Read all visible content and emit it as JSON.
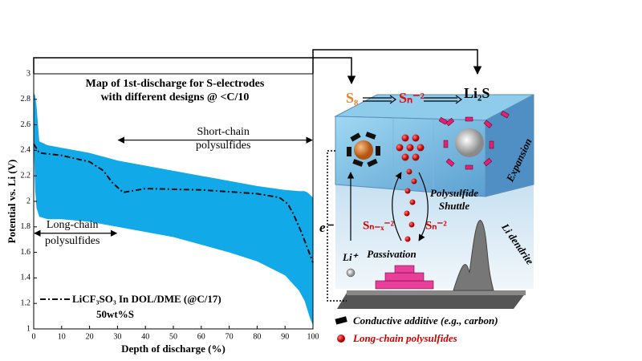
{
  "chart_data": {
    "type": "band-line",
    "title": [
      "Map of 1st-discharge for S-electrodes",
      "with different designs @ <C/10"
    ],
    "x_label": "Depth of discharge (%)",
    "y_label": "Potential vs. Li (V)",
    "xlim": [
      0,
      100
    ],
    "ylim": [
      1,
      3
    ],
    "xticks": [
      0,
      10,
      20,
      30,
      40,
      50,
      60,
      70,
      80,
      90,
      100
    ],
    "yticks": [
      1,
      1.2,
      1.4,
      1.6,
      1.8,
      2,
      2.2,
      2.4,
      2.6,
      2.8,
      3
    ],
    "band": {
      "color": "#12a9e8",
      "x": [
        0,
        0.5,
        1,
        2,
        5,
        10,
        20,
        30,
        40,
        50,
        60,
        70,
        80,
        90,
        95,
        97,
        98,
        99,
        100
      ],
      "upper": [
        2.85,
        2.83,
        2.75,
        2.47,
        2.44,
        2.42,
        2.38,
        2.32,
        2.28,
        2.24,
        2.2,
        2.16,
        2.12,
        2.09,
        2.08,
        2.08,
        2.07,
        2.05,
        2.03
      ],
      "lower": [
        2.5,
        2.1,
        1.95,
        1.88,
        1.86,
        1.86,
        1.84,
        1.8,
        1.76,
        1.72,
        1.66,
        1.6,
        1.53,
        1.42,
        1.3,
        1.22,
        1.15,
        1.08,
        1.03
      ]
    },
    "series": [
      {
        "name": "LiCF₃SO₃ In DOL/DME (@C/17)",
        "color": "#111111",
        "x": [
          0,
          2,
          10,
          20,
          25,
          28,
          32,
          40,
          60,
          80,
          88,
          91,
          93,
          96,
          100
        ],
        "values": [
          2.45,
          2.38,
          2.36,
          2.31,
          2.24,
          2.15,
          2.07,
          2.1,
          2.09,
          2.06,
          2.03,
          1.98,
          1.9,
          1.75,
          1.52
        ]
      }
    ],
    "legend_note": "50wt%S",
    "annotations": [
      {
        "text": [
          "Short-chain",
          "polysulfides"
        ],
        "x": [
          30,
          100
        ],
        "y": 2.48
      },
      {
        "text": [
          "Long-chain",
          "polysulfides"
        ],
        "x": [
          0,
          30
        ],
        "y": 1.75
      }
    ]
  },
  "diagram": {
    "species": [
      "S₈",
      "Sₙ⁻²",
      "Li₂S"
    ],
    "expansion": "Expansion",
    "shuttle": [
      "Polysulfide",
      "Shuttle"
    ],
    "shuttle_left": "Sₙ₋ₓ⁻²",
    "shuttle_right": "Sₙ⁻²",
    "passivation": "Passivation",
    "dendrite": "Li dendrite",
    "li_ion": "Li⁺",
    "electron": "e⁻",
    "legend": [
      "Conductive additive (e.g., carbon)",
      "Long-chain polysulfides"
    ]
  }
}
